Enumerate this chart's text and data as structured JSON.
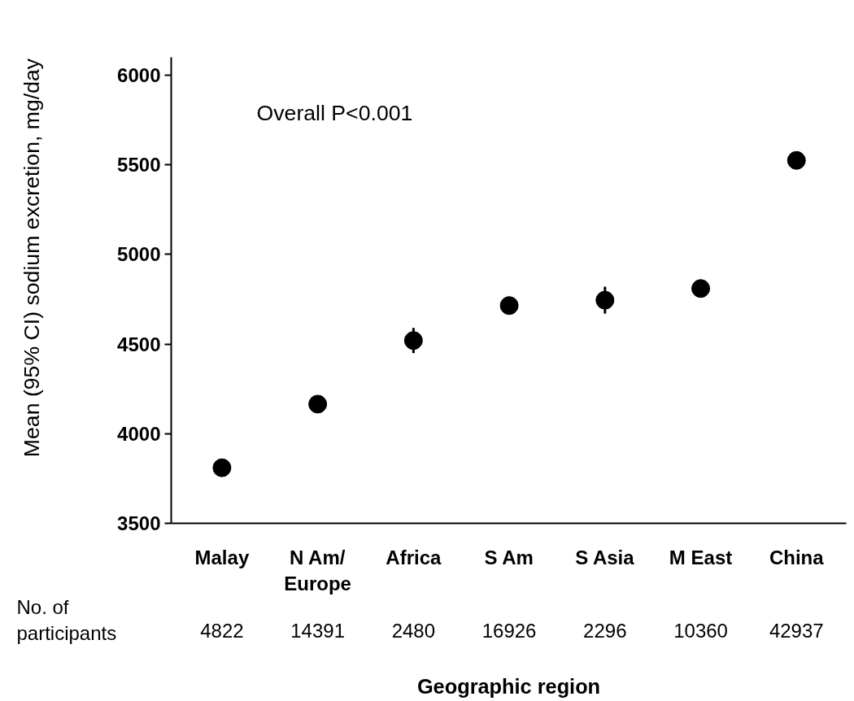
{
  "chart_data": {
    "type": "scatter",
    "categories": [
      "Malay",
      "N Am/\nEurope",
      "Africa",
      "S Am",
      "S Asia",
      "M East",
      "China"
    ],
    "values": [
      3810,
      4165,
      4520,
      4715,
      4745,
      4810,
      5525
    ],
    "errors": [
      null,
      null,
      70,
      null,
      75,
      null,
      null
    ],
    "color": "#000000",
    "marker": "circle",
    "xlabel": "Geographic region",
    "ylabel": "Mean (95% CI) sodium excretion, mg/day",
    "ylim": [
      3500,
      6100
    ],
    "yticks": [
      3500,
      4000,
      4500,
      5000,
      5500,
      6000
    ],
    "grid": false,
    "annotations": [
      "Overall P<0.001",
      "No. of\nparticipants",
      "4822",
      "14391",
      "2480",
      "16926",
      "2296",
      "10360",
      "42937"
    ]
  }
}
